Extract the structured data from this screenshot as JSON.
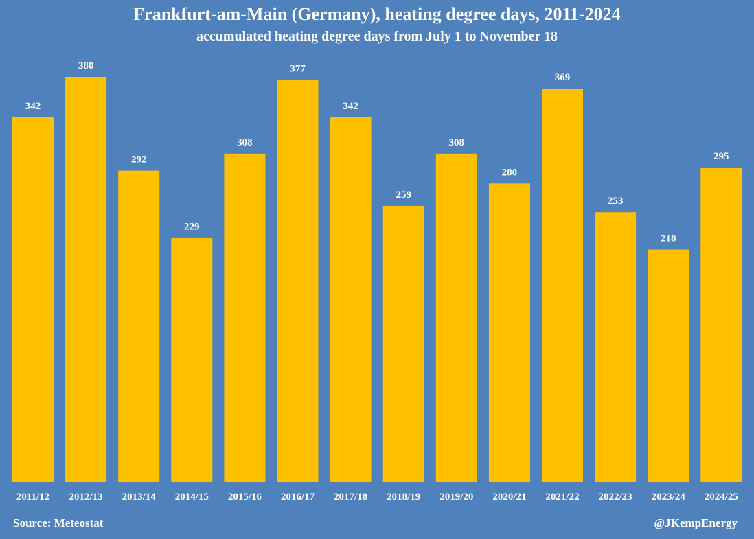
{
  "title": "Frankfurt-am-Main (Germany), heating degree days, 2011-2024",
  "subtitle": "accumulated heating degree days from July 1 to November 18",
  "source": "Source: Meteostat",
  "handle": "@JKempEnergy",
  "colors": {
    "background": "#4f81bd",
    "bar": "#ffc000",
    "text": "#ffffff"
  },
  "chart_data": {
    "type": "bar",
    "categories": [
      "2011/12",
      "2012/13",
      "2013/14",
      "2014/15",
      "2015/16",
      "2016/17",
      "2017/18",
      "2018/19",
      "2019/20",
      "2020/21",
      "2021/22",
      "2022/23",
      "2023/24",
      "2024/25"
    ],
    "values": [
      342,
      380,
      292,
      229,
      308,
      377,
      342,
      259,
      308,
      280,
      369,
      253,
      218,
      295
    ],
    "title": "Frankfurt-am-Main (Germany), heating degree days, 2011-2024",
    "subtitle": "accumulated heating degree days from July 1 to November 18",
    "xlabel": "",
    "ylabel": "",
    "ylim": [
      0,
      380
    ],
    "grid": false,
    "legend": "none",
    "data_labels": true
  }
}
